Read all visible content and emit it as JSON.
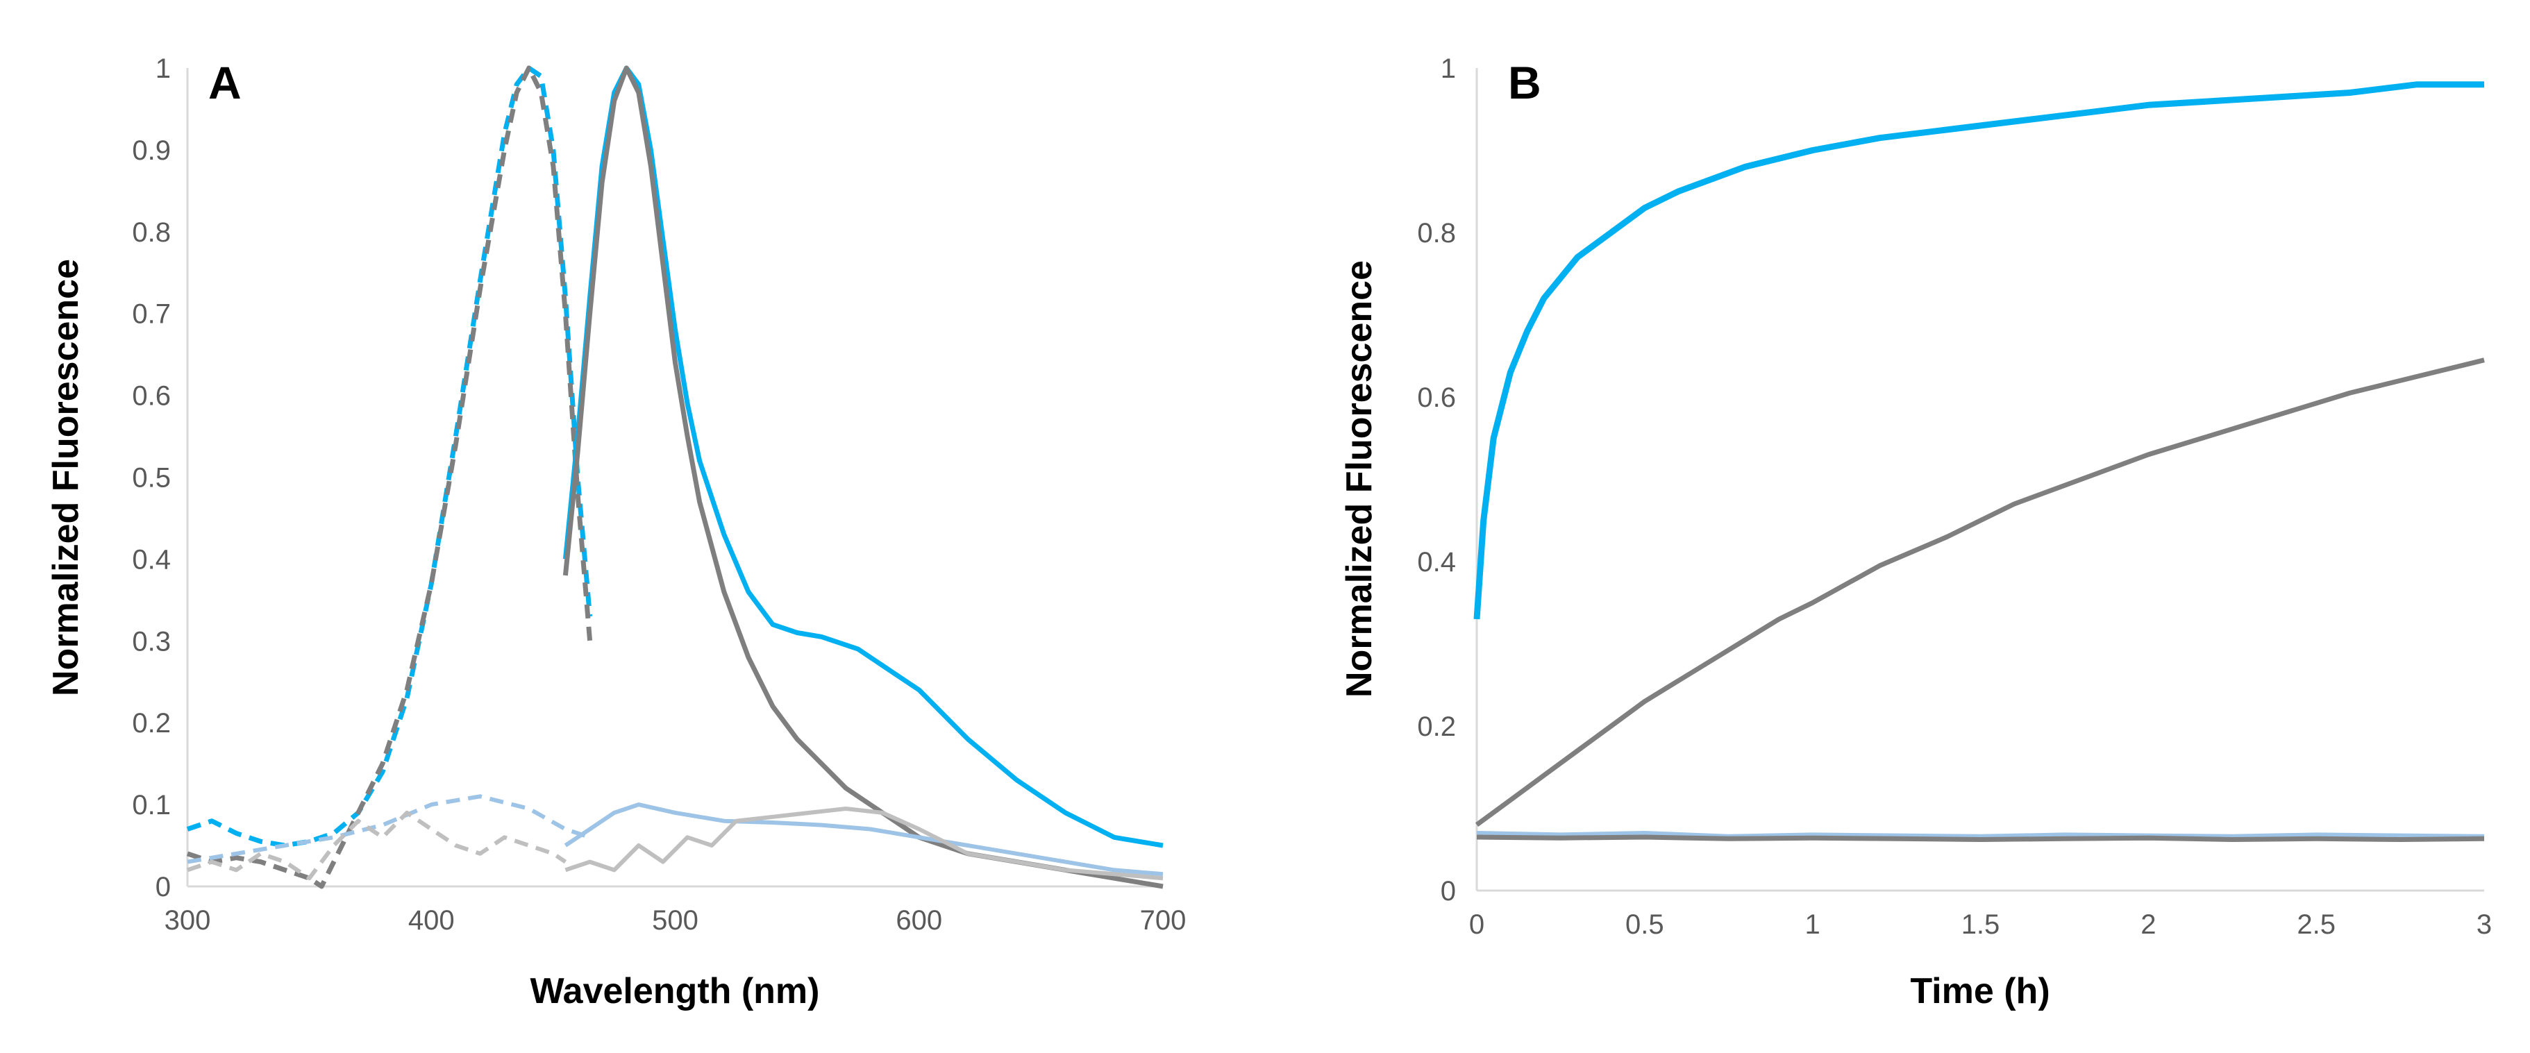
{
  "colors": {
    "cyan": "#00b0f0",
    "dark_gray": "#7f7f7f",
    "light_gray": "#bfbfbf",
    "light_blue": "#9dc3e6",
    "axis": "#d9d9d9"
  },
  "chart_data": [
    {
      "type": "line",
      "panel_label": "A",
      "xlabel": "Wavelength (nm)",
      "ylabel": "Normalized Fluorescence",
      "xlim": [
        300,
        700
      ],
      "ylim": [
        0,
        1
      ],
      "xticks": [
        "300",
        "400",
        "500",
        "600",
        "700"
      ],
      "yticks": [
        "0",
        "0.1",
        "0.2",
        "0.3",
        "0.4",
        "0.5",
        "0.6",
        "0.7",
        "0.8",
        "0.9",
        "1"
      ],
      "series": [
        {
          "name": "excitation-cyan",
          "color": "#00b0f0",
          "dash": true,
          "x": [
            300,
            310,
            320,
            330,
            340,
            350,
            360,
            370,
            380,
            390,
            400,
            410,
            420,
            430,
            435,
            440,
            445,
            450,
            455,
            460,
            465
          ],
          "y": [
            0.07,
            0.08,
            0.065,
            0.055,
            0.05,
            0.055,
            0.065,
            0.09,
            0.14,
            0.23,
            0.37,
            0.55,
            0.74,
            0.92,
            0.98,
            1.0,
            0.99,
            0.9,
            0.72,
            0.5,
            0.33
          ]
        },
        {
          "name": "excitation-dark-gray",
          "color": "#7f7f7f",
          "dash": true,
          "x": [
            300,
            310,
            320,
            330,
            340,
            350,
            355,
            360,
            370,
            380,
            390,
            400,
            410,
            420,
            430,
            435,
            440,
            445,
            450,
            455,
            460,
            465
          ],
          "y": [
            0.04,
            0.03,
            0.035,
            0.03,
            0.02,
            0.01,
            0.0,
            0.03,
            0.09,
            0.15,
            0.24,
            0.37,
            0.54,
            0.73,
            0.9,
            0.97,
            1.0,
            0.97,
            0.88,
            0.7,
            0.48,
            0.3
          ]
        },
        {
          "name": "excitation-light-blue",
          "color": "#9dc3e6",
          "dash": true,
          "x": [
            300,
            320,
            340,
            360,
            380,
            400,
            420,
            440,
            455,
            465
          ],
          "y": [
            0.03,
            0.04,
            0.05,
            0.06,
            0.075,
            0.1,
            0.11,
            0.095,
            0.07,
            0.06
          ]
        },
        {
          "name": "excitation-light-gray",
          "color": "#bfbfbf",
          "dash": true,
          "x": [
            300,
            310,
            320,
            330,
            340,
            350,
            360,
            370,
            380,
            390,
            400,
            410,
            420,
            430,
            440,
            450,
            455
          ],
          "y": [
            0.02,
            0.03,
            0.02,
            0.04,
            0.03,
            0.01,
            0.05,
            0.08,
            0.06,
            0.09,
            0.07,
            0.05,
            0.04,
            0.06,
            0.05,
            0.04,
            0.03
          ]
        },
        {
          "name": "emission-cyan",
          "color": "#00b0f0",
          "dash": false,
          "x": [
            455,
            460,
            465,
            470,
            475,
            480,
            485,
            490,
            495,
            500,
            505,
            510,
            520,
            530,
            540,
            550,
            560,
            575,
            590,
            600,
            620,
            640,
            660,
            680,
            700
          ],
          "y": [
            0.4,
            0.55,
            0.72,
            0.88,
            0.97,
            1.0,
            0.98,
            0.9,
            0.79,
            0.68,
            0.59,
            0.52,
            0.43,
            0.36,
            0.32,
            0.31,
            0.305,
            0.29,
            0.26,
            0.24,
            0.18,
            0.13,
            0.09,
            0.06,
            0.05
          ]
        },
        {
          "name": "emission-dark-gray",
          "color": "#7f7f7f",
          "dash": false,
          "x": [
            455,
            460,
            465,
            470,
            475,
            480,
            485,
            490,
            495,
            500,
            505,
            510,
            520,
            530,
            540,
            550,
            560,
            570,
            580,
            590,
            600,
            620,
            640,
            660,
            680,
            700
          ],
          "y": [
            0.38,
            0.53,
            0.7,
            0.86,
            0.96,
            1.0,
            0.97,
            0.88,
            0.76,
            0.64,
            0.55,
            0.47,
            0.36,
            0.28,
            0.22,
            0.18,
            0.15,
            0.12,
            0.1,
            0.08,
            0.06,
            0.04,
            0.03,
            0.02,
            0.01,
            0.0
          ]
        },
        {
          "name": "emission-light-blue",
          "color": "#9dc3e6",
          "dash": false,
          "x": [
            455,
            465,
            475,
            485,
            500,
            520,
            540,
            560,
            580,
            600,
            620,
            640,
            660,
            680,
            700
          ],
          "y": [
            0.05,
            0.07,
            0.09,
            0.1,
            0.09,
            0.08,
            0.078,
            0.075,
            0.07,
            0.06,
            0.05,
            0.04,
            0.03,
            0.02,
            0.015
          ]
        },
        {
          "name": "emission-light-gray",
          "color": "#bfbfbf",
          "dash": false,
          "x": [
            455,
            465,
            475,
            485,
            495,
            505,
            515,
            525,
            540,
            555,
            570,
            585,
            600,
            620,
            640,
            660,
            680,
            700
          ],
          "y": [
            0.02,
            0.03,
            0.02,
            0.05,
            0.03,
            0.06,
            0.05,
            0.08,
            0.085,
            0.09,
            0.095,
            0.09,
            0.07,
            0.04,
            0.03,
            0.02,
            0.015,
            0.01
          ]
        }
      ]
    },
    {
      "type": "line",
      "panel_label": "B",
      "xlabel": "Time (h)",
      "ylabel": "Normalized Fluorescence",
      "xlim": [
        0,
        3
      ],
      "ylim": [
        0,
        1
      ],
      "xticks": [
        "0",
        "0.5",
        "1",
        "1.5",
        "2",
        "2.5",
        "3"
      ],
      "yticks": [
        "0",
        "0.2",
        "0.4",
        "0.6",
        "0.8",
        "1"
      ],
      "series": [
        {
          "name": "kinetics-cyan",
          "color": "#00b0f0",
          "dash": false,
          "x": [
            0,
            0.02,
            0.05,
            0.1,
            0.15,
            0.2,
            0.3,
            0.4,
            0.5,
            0.6,
            0.8,
            1.0,
            1.2,
            1.4,
            1.6,
            1.8,
            2.0,
            2.2,
            2.4,
            2.6,
            2.8,
            3.0
          ],
          "y": [
            0.33,
            0.45,
            0.55,
            0.63,
            0.68,
            0.72,
            0.77,
            0.8,
            0.83,
            0.85,
            0.88,
            0.9,
            0.915,
            0.925,
            0.935,
            0.945,
            0.955,
            0.96,
            0.965,
            0.97,
            0.98,
            0.98
          ]
        },
        {
          "name": "kinetics-dark-gray",
          "color": "#7f7f7f",
          "dash": false,
          "x": [
            0,
            0.1,
            0.2,
            0.3,
            0.4,
            0.5,
            0.6,
            0.7,
            0.8,
            0.9,
            1.0,
            1.2,
            1.4,
            1.6,
            1.8,
            2.0,
            2.2,
            2.4,
            2.6,
            2.8,
            3.0
          ],
          "y": [
            0.08,
            0.11,
            0.14,
            0.17,
            0.2,
            0.23,
            0.255,
            0.28,
            0.305,
            0.33,
            0.35,
            0.395,
            0.43,
            0.47,
            0.5,
            0.53,
            0.555,
            0.58,
            0.605,
            0.625,
            0.645
          ]
        },
        {
          "name": "kinetics-light-blue",
          "color": "#9dc3e6",
          "dash": false,
          "x": [
            0,
            0.25,
            0.5,
            0.75,
            1.0,
            1.25,
            1.5,
            1.75,
            2.0,
            2.25,
            2.5,
            2.75,
            3.0
          ],
          "y": [
            0.07,
            0.068,
            0.07,
            0.066,
            0.068,
            0.067,
            0.066,
            0.068,
            0.067,
            0.066,
            0.068,
            0.067,
            0.066
          ]
        },
        {
          "name": "kinetics-gray-baseline",
          "color": "#7f7f7f",
          "dash": false,
          "x": [
            0,
            0.25,
            0.5,
            0.75,
            1.0,
            1.25,
            1.5,
            1.75,
            2.0,
            2.25,
            2.5,
            2.75,
            3.0
          ],
          "y": [
            0.065,
            0.064,
            0.065,
            0.063,
            0.064,
            0.063,
            0.062,
            0.063,
            0.064,
            0.062,
            0.063,
            0.062,
            0.063
          ]
        }
      ]
    }
  ]
}
